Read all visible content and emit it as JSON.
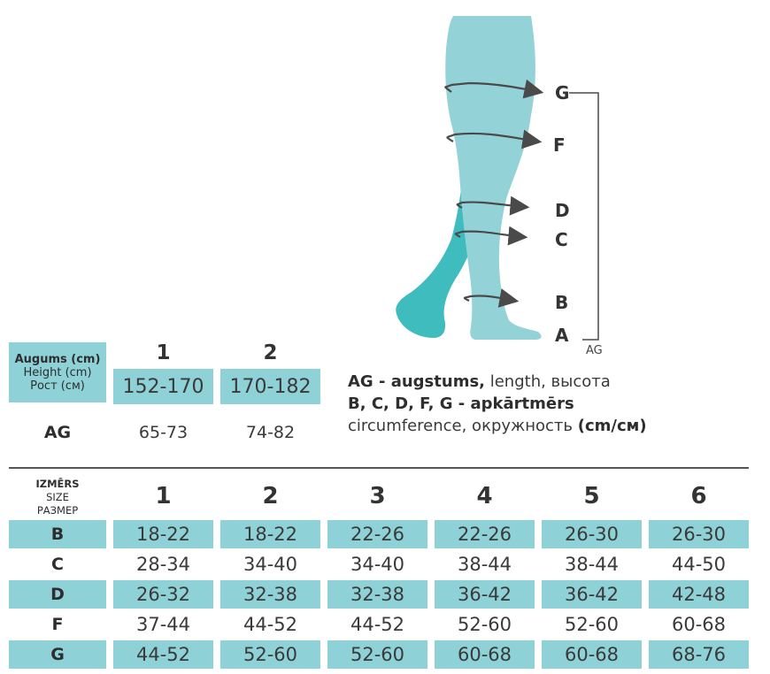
{
  "figure": {
    "labels": [
      "G",
      "F",
      "D",
      "C",
      "B",
      "A"
    ],
    "bracket_label": "AG",
    "colors": {
      "leg_front": "#93d3d8",
      "leg_back": "#3ebcbe",
      "arrow": "#4a4a4a"
    }
  },
  "height_table": {
    "header_lines": [
      "Augums (cm)",
      "Height (cm)",
      "Рост (см)"
    ],
    "sizes": [
      "1",
      "2"
    ],
    "height_values": [
      "152-170",
      "170-182"
    ],
    "ag_label": "AG",
    "ag_values": [
      "65-73",
      "74-82"
    ]
  },
  "legend": {
    "line1_bold": "AG - augstums,",
    "line1_rest": " length, высота",
    "line2_bold": "B, C, D, F, G - apkārtmērs",
    "line3_rest": "circumference, окружность ",
    "line3_bold": "(cm/см)"
  },
  "size_table": {
    "header_lines": [
      "IZMĒRS",
      "SIZE",
      "РАЗМЕР"
    ],
    "sizes": [
      "1",
      "2",
      "3",
      "4",
      "5",
      "6"
    ],
    "rows": [
      {
        "label": "B",
        "values": [
          "18-22",
          "18-22",
          "22-26",
          "22-26",
          "26-30",
          "26-30"
        ]
      },
      {
        "label": "C",
        "values": [
          "28-34",
          "34-40",
          "34-40",
          "38-44",
          "38-44",
          "44-50"
        ]
      },
      {
        "label": "D",
        "values": [
          "26-32",
          "32-38",
          "32-38",
          "36-42",
          "36-42",
          "42-48"
        ]
      },
      {
        "label": "F",
        "values": [
          "37-44",
          "44-52",
          "44-52",
          "52-60",
          "52-60",
          "60-68"
        ]
      },
      {
        "label": "G",
        "values": [
          "44-52",
          "52-60",
          "52-60",
          "60-68",
          "60-68",
          "68-76"
        ]
      }
    ]
  },
  "colors": {
    "teal": "#8ed1d6",
    "text": "#333333",
    "divider": "#555555"
  }
}
